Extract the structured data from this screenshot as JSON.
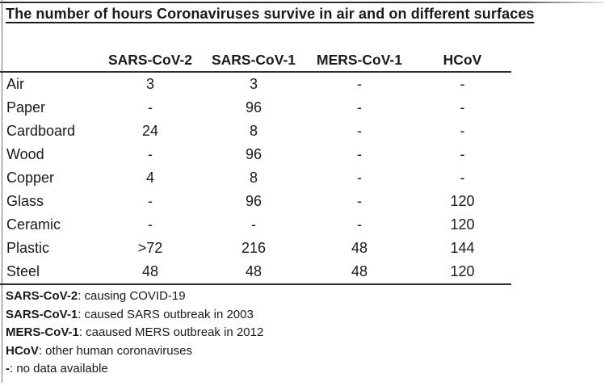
{
  "chart_data": {
    "type": "table",
    "title": "The number of hours Coronaviruses survive in air and on different surfaces",
    "columns": [
      "",
      "SARS-CoV-2",
      "SARS-CoV-1",
      "MERS-CoV-1",
      "HCoV"
    ],
    "rows": [
      {
        "label": "Air",
        "values": [
          "3",
          "3",
          "-",
          "-"
        ]
      },
      {
        "label": "Paper",
        "values": [
          "-",
          "96",
          "-",
          "-"
        ]
      },
      {
        "label": "Cardboard",
        "values": [
          "24",
          "8",
          "-",
          "-"
        ]
      },
      {
        "label": "Wood",
        "values": [
          "-",
          "96",
          "-",
          "-"
        ]
      },
      {
        "label": "Copper",
        "values": [
          "4",
          "8",
          "-",
          "-"
        ]
      },
      {
        "label": "Glass",
        "values": [
          "-",
          "96",
          "-",
          "120"
        ]
      },
      {
        "label": "Ceramic",
        "values": [
          "-",
          "-",
          "-",
          "120"
        ]
      },
      {
        "label": "Plastic",
        "values": [
          ">72",
          "216",
          "48",
          "144"
        ]
      },
      {
        "label": "Steel",
        "values": [
          "48",
          "48",
          "48",
          "120"
        ]
      }
    ],
    "notes": [
      {
        "term": "SARS-CoV-2",
        "text": ": causing COVID-19"
      },
      {
        "term": "SARS-CoV-1",
        "text": ": caused SARS outbreak in 2003"
      },
      {
        "term": "MERS-CoV-1",
        "text": ": caaused MERS outbreak in 2012"
      },
      {
        "term": "HCoV",
        "text": ": other human coronaviruses"
      },
      {
        "term": "-",
        "text": ": no data available"
      }
    ],
    "layout_hints": {
      "grid": "off",
      "header_rule": true,
      "bottom_rule": true
    }
  },
  "colors": {
    "text": "#1a1a1a",
    "rule": "#2e2e2e",
    "background": "#ffffff"
  }
}
